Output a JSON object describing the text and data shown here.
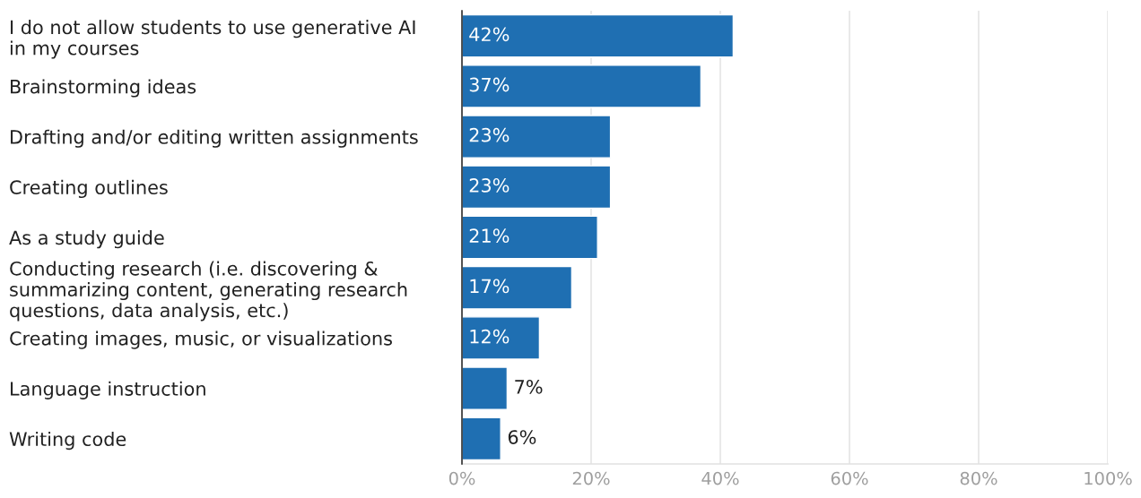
{
  "chart_data": {
    "type": "bar",
    "orientation": "horizontal",
    "categories": [
      "I do not allow students to use generative AI\nin my courses",
      "Brainstorming ideas",
      "Drafting and/or editing written assignments",
      "Creating outlines",
      "As a study guide",
      "Conducting research (i.e. discovering &\nsummarizing content, generating research\nquestions, data analysis, etc.)",
      "Creating images, music, or visualizations",
      "Language instruction",
      "Writing code"
    ],
    "values": [
      42,
      37,
      23,
      23,
      21,
      17,
      12,
      7,
      6
    ],
    "value_labels": [
      "42%",
      "37%",
      "23%",
      "23%",
      "21%",
      "17%",
      "12%",
      "7%",
      "6%"
    ],
    "color": "#1f6fb2",
    "xlim": [
      0,
      100
    ],
    "xticks": [
      {
        "value": 0,
        "label": "0%"
      },
      {
        "value": 20,
        "label": "20%"
      },
      {
        "value": 40,
        "label": "40%"
      },
      {
        "value": 60,
        "label": "60%"
      },
      {
        "value": 80,
        "label": "80%"
      },
      {
        "value": 100,
        "label": "100%"
      }
    ],
    "grid": "x"
  }
}
